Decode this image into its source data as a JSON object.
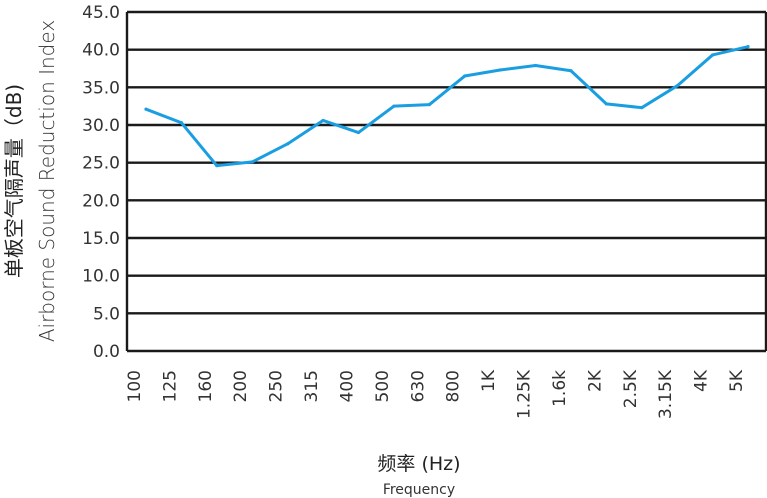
{
  "chart_data": {
    "type": "line",
    "title": "",
    "ylabel_cn": "单板空气隔声量（dB)",
    "ylabel_en": "Airborne Sound Reduction Index",
    "xlabel_cn": "频率 (Hz)",
    "xlabel_en": "Frequency",
    "ylim": [
      0,
      45
    ],
    "y_ticks": [
      "0.0",
      "5.0",
      "10.0",
      "15.0",
      "20.0",
      "25.0",
      "30.0",
      "35.0",
      "40.0",
      "45.0"
    ],
    "categories": [
      "100",
      "125",
      "160",
      "200",
      "250",
      "315",
      "400",
      "500",
      "630",
      "800",
      "1K",
      "1.25K",
      "1.6k",
      "2K",
      "2.5K",
      "3.15K",
      "4K",
      "5K"
    ],
    "series": [
      {
        "values": [
          32.1,
          30.3,
          24.6,
          25.1,
          27.5,
          30.6,
          29.0,
          32.5,
          32.7,
          36.5,
          37.3,
          37.9,
          37.2,
          32.8,
          32.3,
          35.2,
          39.3,
          40.4
        ]
      }
    ],
    "grid": true,
    "line_color": "#1a9ee2",
    "grid_color": "#1a1a1a"
  }
}
